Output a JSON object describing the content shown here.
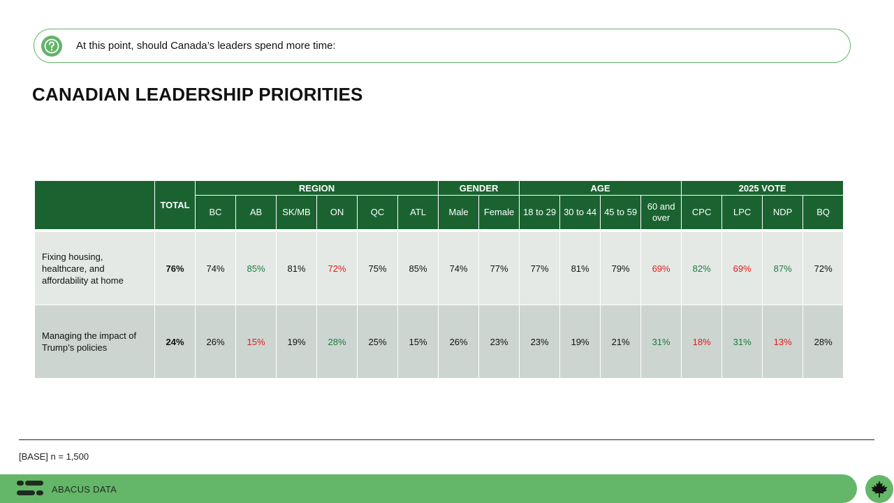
{
  "question": "At this point, should Canada’s leaders spend more time:",
  "title": "CANADIAN LEADERSHIP PRIORITIES",
  "table": {
    "total_header": "TOTAL",
    "groups": [
      {
        "label": "REGION",
        "span": 6
      },
      {
        "label": "GENDER",
        "span": 2
      },
      {
        "label": "AGE",
        "span": 4
      },
      {
        "label": "2025 VOTE",
        "span": 4
      }
    ],
    "columns": [
      "BC",
      "AB",
      "SK/MB",
      "ON",
      "QC",
      "ATL",
      "Male",
      "Female",
      "18 to 29",
      "30 to 44",
      "45 to 59",
      "60 and over",
      "CPC",
      "LPC",
      "NDP",
      "BQ"
    ],
    "rows": [
      {
        "label": "Fixing housing, healthcare, and affordability at home",
        "total": "76%",
        "values": [
          "74%",
          "85%",
          "81%",
          "72%",
          "75%",
          "85%",
          "74%",
          "77%",
          "77%",
          "81%",
          "79%",
          "69%",
          "82%",
          "69%",
          "87%",
          "72%"
        ],
        "highlight": [
          "",
          "green",
          "",
          "red",
          "",
          "",
          "",
          "",
          "",
          "",
          "",
          "red",
          "green",
          "red",
          "green",
          ""
        ]
      },
      {
        "label": "Managing the impact of Trump’s policies",
        "total": "24%",
        "values": [
          "26%",
          "15%",
          "19%",
          "28%",
          "25%",
          "15%",
          "26%",
          "23%",
          "23%",
          "19%",
          "21%",
          "31%",
          "18%",
          "31%",
          "13%",
          "28%"
        ],
        "highlight": [
          "",
          "red",
          "",
          "green",
          "",
          "",
          "",
          "",
          "",
          "",
          "",
          "green",
          "red",
          "green",
          "red",
          ""
        ]
      }
    ]
  },
  "base_note": "[BASE] n = 1,500",
  "brand": "ABACUS DATA",
  "icons": {
    "question": "question-circle-icon",
    "logo": "abacus-logo-icon",
    "maple": "maple-leaf-icon"
  },
  "colors": {
    "header_green": "#1a6331",
    "accent_green": "#64b768",
    "positive": "#1a7a3c",
    "negative": "#e01b1b"
  }
}
